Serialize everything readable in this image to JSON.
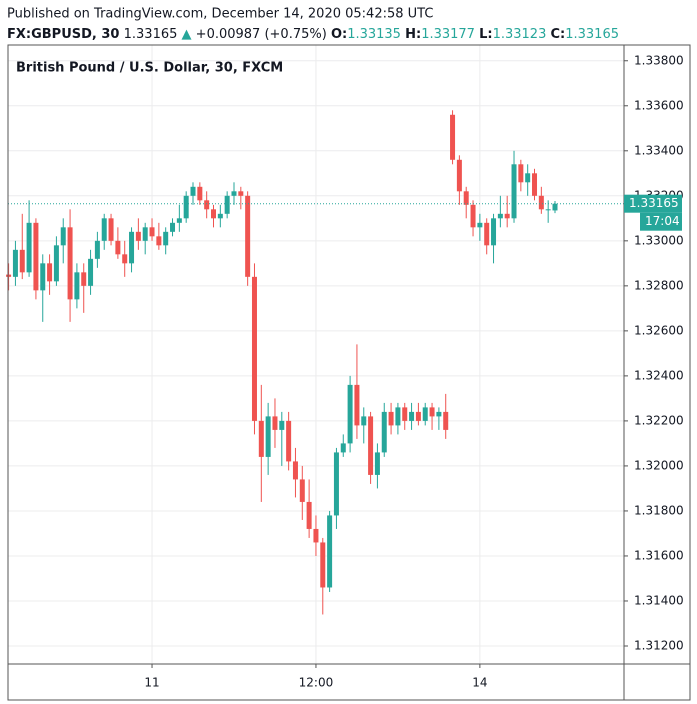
{
  "header": {
    "published": "Published on TradingView.com, December 14, 2020 05:42:58 UTC",
    "symbol": "FX:GBPUSD, 30",
    "last": "1.33165",
    "change_arrow": "▲",
    "change": "+0.00987 (+0.75%)",
    "ohlc": [
      {
        "key": "O:",
        "value": "1.33135"
      },
      {
        "key": "H:",
        "value": "1.33177"
      },
      {
        "key": "L:",
        "value": "1.33123"
      },
      {
        "key": "C:",
        "value": "1.33165"
      }
    ]
  },
  "chart_data": {
    "type": "candlestick",
    "title": "British Pound / U.S. Dollar, 30, FXCM",
    "categories": [
      null,
      null,
      null,
      null,
      null,
      null,
      null,
      null,
      null,
      null,
      null,
      null,
      null,
      null,
      null,
      null,
      null,
      null,
      null,
      null,
      null,
      "11",
      null,
      null,
      null,
      null,
      null,
      null,
      null,
      null,
      null,
      null,
      null,
      null,
      null,
      null,
      null,
      null,
      null,
      null,
      null,
      null,
      null,
      null,
      null,
      "12:00",
      null,
      null,
      null,
      null,
      null,
      null,
      null,
      null,
      null,
      null,
      null,
      null,
      null,
      null,
      null,
      null,
      null,
      null,
      null,
      null,
      null,
      null,
      null,
      "14",
      null,
      null,
      null,
      null,
      null,
      null,
      null,
      null,
      null,
      null,
      null
    ],
    "open": [
      1.3285,
      1.3284,
      1.3296,
      1.3286,
      1.3308,
      1.3278,
      1.329,
      1.3282,
      1.3298,
      1.3306,
      1.3274,
      1.3286,
      1.328,
      1.3292,
      1.33,
      1.331,
      1.33,
      1.3294,
      1.329,
      1.3304,
      1.33,
      1.3306,
      1.3302,
      1.3298,
      1.3304,
      1.3308,
      1.331,
      1.332,
      1.3324,
      1.3318,
      1.3314,
      1.331,
      1.3312,
      1.332,
      1.3322,
      1.332,
      1.3284,
      1.322,
      1.3204,
      1.3222,
      1.3216,
      1.322,
      1.3202,
      1.3194,
      1.3184,
      1.3172,
      1.3166,
      1.3146,
      1.3178,
      1.3206,
      1.321,
      1.3236,
      1.3218,
      1.3222,
      1.3196,
      1.3206,
      1.3224,
      1.3218,
      1.3226,
      1.322,
      1.3224,
      1.322,
      1.3226,
      1.3222,
      1.3224,
      1.3356,
      1.3336,
      1.3322,
      1.3316,
      1.3306,
      1.3308,
      1.3298,
      1.331,
      1.3312,
      1.331,
      1.3334,
      1.3326,
      1.333,
      1.332,
      1.3314,
      1.33135
    ],
    "high": [
      1.329,
      1.33,
      1.3312,
      1.3318,
      1.331,
      1.3294,
      1.3294,
      1.3302,
      1.331,
      1.3314,
      1.329,
      1.329,
      1.3296,
      1.3304,
      1.3312,
      1.3312,
      1.3306,
      1.33,
      1.3306,
      1.331,
      1.3308,
      1.331,
      1.3308,
      1.3306,
      1.331,
      1.3316,
      1.3322,
      1.3326,
      1.3326,
      1.3322,
      1.3316,
      1.3316,
      1.3322,
      1.3326,
      1.3324,
      1.3322,
      1.329,
      1.3236,
      1.3228,
      1.323,
      1.3224,
      1.3224,
      1.3208,
      1.32,
      1.3194,
      1.3178,
      1.3168,
      1.318,
      1.3208,
      1.3214,
      1.324,
      1.3254,
      1.3226,
      1.3224,
      1.321,
      1.3228,
      1.3228,
      1.3228,
      1.3228,
      1.3228,
      1.3228,
      1.3228,
      1.3228,
      1.3226,
      1.3232,
      1.3358,
      1.3338,
      1.3324,
      1.3318,
      1.3312,
      1.331,
      1.3312,
      1.332,
      1.332,
      1.334,
      1.3336,
      1.3334,
      1.3332,
      1.3324,
      1.3318,
      1.33177
    ],
    "low": [
      1.3278,
      1.328,
      1.3283,
      1.3284,
      1.3274,
      1.3264,
      1.3276,
      1.328,
      1.329,
      1.3264,
      1.327,
      1.3268,
      1.3276,
      1.3288,
      1.3296,
      1.3298,
      1.3292,
      1.3284,
      1.3286,
      1.3296,
      1.3294,
      1.33,
      1.3296,
      1.3294,
      1.3302,
      1.3304,
      1.3308,
      1.3316,
      1.3316,
      1.331,
      1.3306,
      1.3306,
      1.331,
      1.3316,
      1.3314,
      1.328,
      1.3214,
      1.3184,
      1.3196,
      1.3208,
      1.32,
      1.3198,
      1.3186,
      1.3176,
      1.3168,
      1.316,
      1.3134,
      1.3144,
      1.3172,
      1.3204,
      1.3206,
      1.3212,
      1.321,
      1.3192,
      1.319,
      1.3204,
      1.3214,
      1.3214,
      1.3216,
      1.3216,
      1.3218,
      1.3218,
      1.3216,
      1.3216,
      1.3212,
      1.3334,
      1.3316,
      1.331,
      1.3302,
      1.33,
      1.3294,
      1.329,
      1.3306,
      1.3306,
      1.3308,
      1.3322,
      1.332,
      1.3318,
      1.3312,
      1.3308,
      1.33123
    ],
    "close": [
      1.3284,
      1.3296,
      1.3286,
      1.3308,
      1.3278,
      1.329,
      1.3282,
      1.3298,
      1.3306,
      1.3274,
      1.3286,
      1.328,
      1.3292,
      1.33,
      1.331,
      1.33,
      1.3294,
      1.329,
      1.3304,
      1.33,
      1.3306,
      1.3302,
      1.3298,
      1.3304,
      1.3308,
      1.331,
      1.332,
      1.3324,
      1.3318,
      1.3314,
      1.331,
      1.3312,
      1.332,
      1.3322,
      1.332,
      1.3284,
      1.322,
      1.3204,
      1.3222,
      1.3216,
      1.322,
      1.3202,
      1.3194,
      1.3184,
      1.3172,
      1.3166,
      1.3146,
      1.3178,
      1.3206,
      1.321,
      1.3236,
      1.3218,
      1.3222,
      1.3196,
      1.3206,
      1.3224,
      1.3218,
      1.3226,
      1.322,
      1.3224,
      1.322,
      1.3226,
      1.3222,
      1.3224,
      1.3216,
      1.3336,
      1.3322,
      1.3316,
      1.3306,
      1.3308,
      1.3298,
      1.331,
      1.3312,
      1.331,
      1.3334,
      1.3326,
      1.333,
      1.332,
      1.3314,
      1.3314,
      1.33165
    ],
    "up_color": "#26a69a",
    "down_color": "#ef5350",
    "ylim": [
      1.3112,
      1.3387
    ],
    "yticks": [
      {
        "value": 1.312,
        "label": "1.31200"
      },
      {
        "value": 1.314,
        "label": "1.31400"
      },
      {
        "value": 1.316,
        "label": "1.31600"
      },
      {
        "value": 1.318,
        "label": "1.31800"
      },
      {
        "value": 1.32,
        "label": "1.32000"
      },
      {
        "value": 1.322,
        "label": "1.32200"
      },
      {
        "value": 1.324,
        "label": "1.32400"
      },
      {
        "value": 1.326,
        "label": "1.32600"
      },
      {
        "value": 1.328,
        "label": "1.32800"
      },
      {
        "value": 1.33,
        "label": "1.33000"
      },
      {
        "value": 1.332,
        "label": "1.33200"
      },
      {
        "value": 1.334,
        "label": "1.33400"
      },
      {
        "value": 1.336,
        "label": "1.33600"
      },
      {
        "value": 1.338,
        "label": "1.33800"
      }
    ],
    "grid": true,
    "last_price": 1.33165,
    "countdown": "17:04"
  }
}
